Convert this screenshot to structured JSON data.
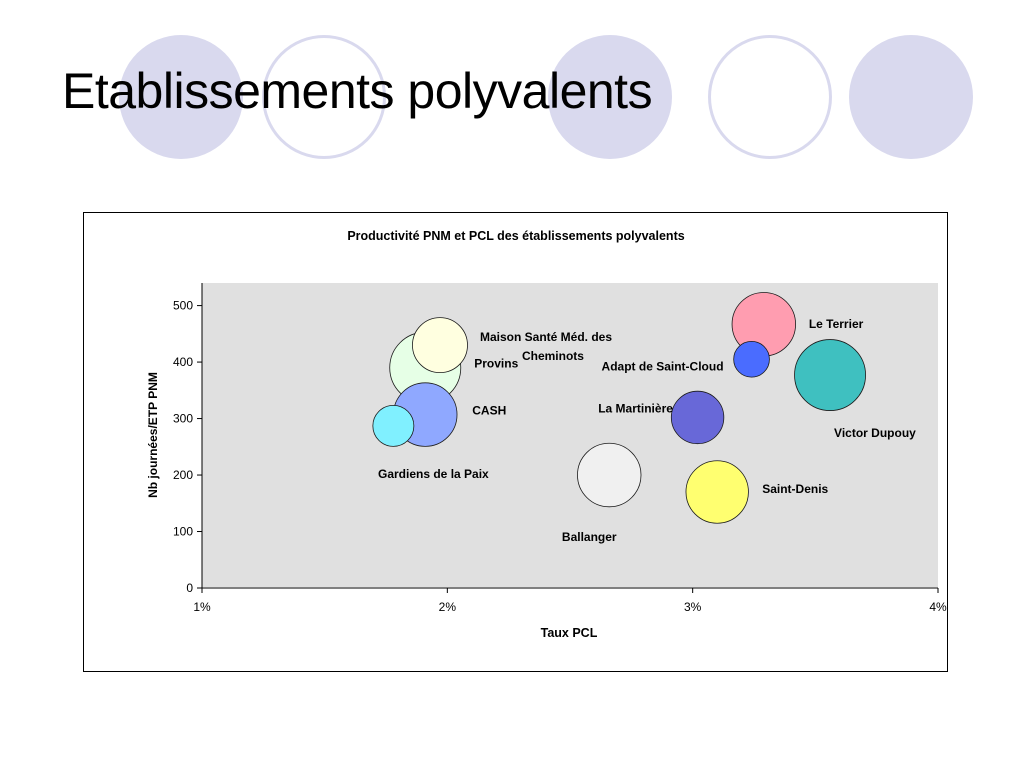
{
  "slide": {
    "title": "Etablissements polyvalents"
  },
  "chart_data": {
    "type": "bubble",
    "title": "Productivité PNM et PCL des établissements polyvalents",
    "xlabel": "Taux PCL",
    "ylabel": "Nb journées/ETP PNM",
    "xlim": [
      0.01,
      0.04
    ],
    "ylim": [
      0,
      540
    ],
    "x_ticks": [
      0.01,
      0.02,
      0.03,
      0.04
    ],
    "x_tick_labels": [
      "1%",
      "2%",
      "3%",
      "4%"
    ],
    "y_ticks": [
      0,
      100,
      200,
      300,
      400,
      500
    ],
    "y_tick_labels": [
      "0",
      "100",
      "200",
      "300",
      "400",
      "500"
    ],
    "grid": false,
    "series": [
      {
        "name": "Maison Santé Méd. des Cheminots",
        "x": 0.0197,
        "y": 430,
        "size": 0.9,
        "color": "#ffffe0"
      },
      {
        "name": "Provins",
        "x": 0.0191,
        "y": 390,
        "size": 1.5,
        "color": "#e6ffe6"
      },
      {
        "name": "Gardiens de la Paix",
        "x": 0.0178,
        "y": 287,
        "size": 0.5,
        "color": "#80f0ff"
      },
      {
        "name": "CASH",
        "x": 0.0191,
        "y": 307,
        "size": 1.2,
        "color": "#8fa8ff"
      },
      {
        "name": "Ballanger",
        "x": 0.0266,
        "y": 200,
        "size": 1.2,
        "color": "#f0f0f0"
      },
      {
        "name": "La Martinière",
        "x": 0.0302,
        "y": 302,
        "size": 0.82,
        "color": "#6868d8"
      },
      {
        "name": "Saint-Denis",
        "x": 0.031,
        "y": 170,
        "size": 1.16,
        "color": "#ffff70"
      },
      {
        "name": "Le Terrier",
        "x": 0.0329,
        "y": 467,
        "size": 1.2,
        "color": "#ff9db0"
      },
      {
        "name": "Adapt de Saint-Cloud",
        "x": 0.0324,
        "y": 405,
        "size": 0.38,
        "color": "#4a6cff"
      },
      {
        "name": "Victor Dupouy",
        "x": 0.0356,
        "y": 377,
        "size": 1.5,
        "color": "#3fc0c0"
      }
    ]
  }
}
